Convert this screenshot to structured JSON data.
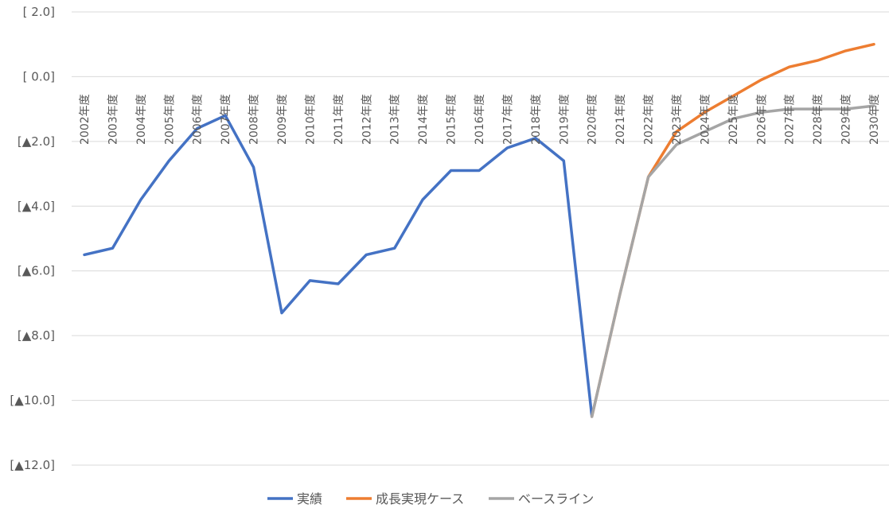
{
  "chart_data": {
    "type": "line",
    "title": "",
    "xlabel": "",
    "ylabel": "",
    "ylim": [
      -12.0,
      2.0
    ],
    "y_ticks": [
      2.0,
      0.0,
      -2.0,
      -4.0,
      -6.0,
      -8.0,
      -10.0,
      -12.0
    ],
    "y_tick_labels": [
      "[ 2.0]",
      "[ 0.0]",
      "[▲2.0]",
      "[▲4.0]",
      "[▲6.0]",
      "[▲8.0]",
      "[▲10.0]",
      "[▲12.0]"
    ],
    "categories": [
      "2002年度",
      "2003年度",
      "2004年度",
      "2005年度",
      "2006年度",
      "2007年度",
      "2008年度",
      "2009年度",
      "2010年度",
      "2011年度",
      "2012年度",
      "2013年度",
      "2014年度",
      "2015年度",
      "2016年度",
      "2017年度",
      "2018年度",
      "2019年度",
      "2020年度",
      "2021年度",
      "2022年度",
      "2023年度",
      "2024年度",
      "2025年度",
      "2026年度",
      "2027年度",
      "2028年度",
      "2029年度",
      "2030年度"
    ],
    "grid": true,
    "legend_position": "bottom",
    "series": [
      {
        "name": "実績",
        "color": "#4472c4",
        "values": [
          -5.5,
          -5.3,
          -3.8,
          -2.6,
          -1.6,
          -1.2,
          -2.8,
          -7.3,
          -6.3,
          -6.4,
          -5.5,
          -5.3,
          -3.8,
          -2.9,
          -2.9,
          -2.2,
          -1.9,
          -2.6,
          -10.5,
          null,
          null,
          null,
          null,
          null,
          null,
          null,
          null,
          null,
          null
        ]
      },
      {
        "name": "成長実現ケース",
        "color": "#ed7d31",
        "values": [
          null,
          null,
          null,
          null,
          null,
          null,
          null,
          null,
          null,
          null,
          null,
          null,
          null,
          null,
          null,
          null,
          null,
          null,
          -10.5,
          -6.7,
          -3.1,
          -1.7,
          -1.1,
          -0.6,
          -0.1,
          0.3,
          0.5,
          0.8,
          1.0
        ]
      },
      {
        "name": "ベースライン",
        "color": "#a5a5a5",
        "values": [
          null,
          null,
          null,
          null,
          null,
          null,
          null,
          null,
          null,
          null,
          null,
          null,
          null,
          null,
          null,
          null,
          null,
          null,
          -10.5,
          -6.7,
          -3.1,
          -2.1,
          -1.7,
          -1.3,
          -1.1,
          -1.0,
          -1.0,
          -1.0,
          -0.9
        ]
      }
    ]
  }
}
